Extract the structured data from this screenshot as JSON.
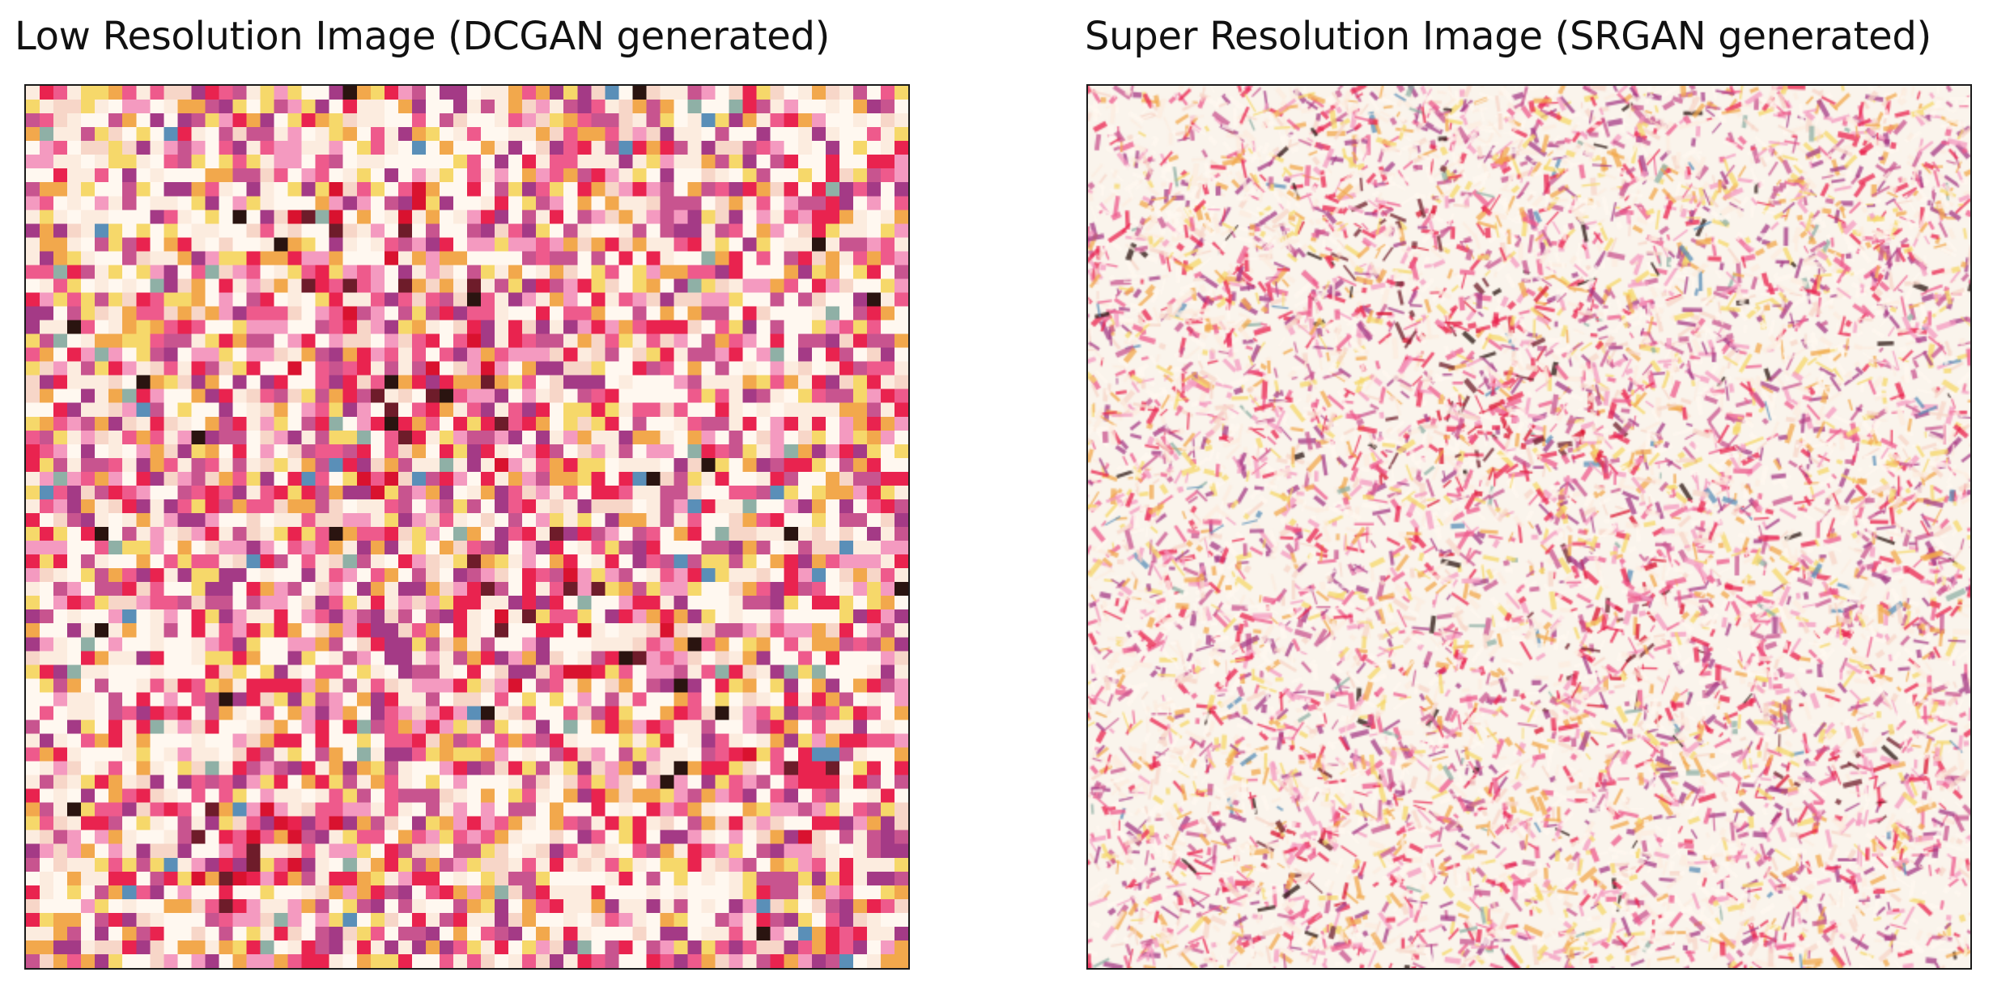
{
  "panels": {
    "left": {
      "title": "Low Resolution Image (DCGAN generated)"
    },
    "right": {
      "title": "Super Resolution Image (SRGAN generated)"
    }
  },
  "palette": [
    "#fff8f0",
    "#fcecdf",
    "#f7d6c8",
    "#f49ac0",
    "#ee5a8c",
    "#e9234f",
    "#d9122f",
    "#f2a84c",
    "#f6d86a",
    "#c8548f",
    "#a43a86",
    "#6e1c2a",
    "#2a1410",
    "#8fb0a6",
    "#5a8fb8"
  ]
}
